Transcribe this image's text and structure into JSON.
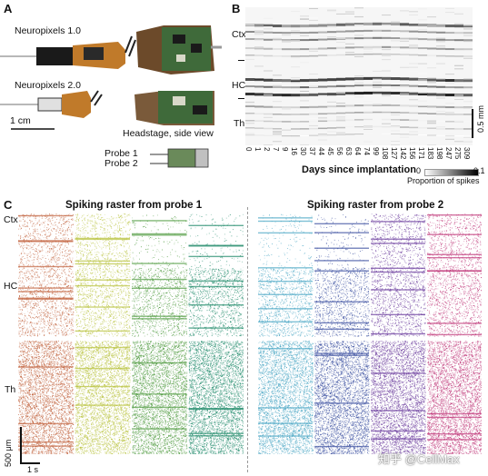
{
  "panel_a": {
    "letter": "A",
    "np1_label": "Neuropixels 1.0",
    "np2_label": "Neuropixels 2.0",
    "scale_label": "1 cm",
    "headstage_label": "Headstage, side view",
    "probe1_label": "Probe 1",
    "probe2_label": "Probe 2"
  },
  "panel_b": {
    "letter": "B",
    "regions": [
      "Ctx",
      "HC",
      "Th"
    ],
    "scale_label": "0.5 mm",
    "xlabel": "Days since implantation",
    "x_ticks": [
      "0",
      "1",
      "2",
      "7",
      "9",
      "16",
      "30",
      "37",
      "44",
      "45",
      "56",
      "63",
      "64",
      "74",
      "99",
      "108",
      "127",
      "142",
      "156",
      "171",
      "183",
      "198",
      "247",
      "275",
      "309"
    ],
    "cbar_min": "0",
    "cbar_max": "0.1",
    "cbar_label": "Proportion of spikes"
  },
  "panel_c": {
    "letter": "C",
    "title1": "Spiking raster from probe 1",
    "title2": "Spiking raster from probe 2",
    "regions": [
      "Ctx",
      "HC",
      "Th"
    ],
    "scale_v": "500 μm",
    "scale_h": "1 s",
    "watermark": "知乎 @CellMax",
    "probe1_colors": [
      "#c0603a",
      "#b8c23c",
      "#4e9a3e",
      "#1f8a6a"
    ],
    "probe2_colors": [
      "#4aa6c4",
      "#3a4fa0",
      "#6a3a9c",
      "#c0397a"
    ]
  }
}
